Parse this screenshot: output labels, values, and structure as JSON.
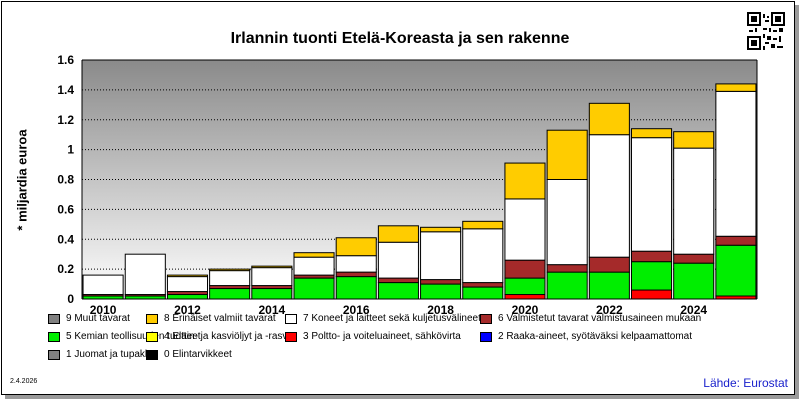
{
  "chart_data": {
    "type": "bar",
    "stacked": true,
    "title": "Irlannin tuonti Etelä-Koreasta ja sen rakenne",
    "ylabel": "* miljardia euroa",
    "xlabel": "",
    "ylim": [
      0,
      1.6
    ],
    "yticks": [
      "0",
      "0.2",
      "0.4",
      "0.6",
      "0.8",
      "1",
      "1.2",
      "1.4",
      "1.6"
    ],
    "ytick_values": [
      0,
      0.2,
      0.4,
      0.6,
      0.8,
      1.0,
      1.2,
      1.4,
      1.6
    ],
    "xtick_labels": [
      "2010",
      "2012",
      "2014",
      "2016",
      "2018",
      "2020",
      "2022",
      "2024"
    ],
    "categories": [
      "2010",
      "2011",
      "2012",
      "2013",
      "2014",
      "2015",
      "2016",
      "2017",
      "2018",
      "2019",
      "2020",
      "2021",
      "2022",
      "2023",
      "2024",
      "2025"
    ],
    "grid": true,
    "legend_position": "bottom",
    "series": [
      {
        "name": "0 Elintarvikkeet",
        "color": "#000000",
        "values": [
          0,
          0,
          0,
          0,
          0,
          0,
          0,
          0,
          0,
          0,
          0,
          0,
          0,
          0,
          0,
          0
        ]
      },
      {
        "name": "1 Juomat ja tupakka",
        "color": "#808080",
        "values": [
          0,
          0,
          0,
          0,
          0,
          0,
          0,
          0,
          0,
          0,
          0,
          0,
          0,
          0,
          0,
          0
        ]
      },
      {
        "name": "2 Raaka-aineet, syötäväksi kelpaamattomat",
        "color": "#0000ff",
        "values": [
          0,
          0,
          0,
          0,
          0,
          0,
          0,
          0,
          0,
          0,
          0,
          0,
          0,
          0,
          0,
          0
        ]
      },
      {
        "name": "3 Poltto- ja voiteluaineet, sähkövirta",
        "color": "#ff0000",
        "values": [
          0,
          0,
          0,
          0,
          0,
          0,
          0,
          0,
          0,
          0,
          0.03,
          0,
          0,
          0.06,
          0,
          0.02
        ]
      },
      {
        "name": "4 Eläin- ja kasviöljyt ja -rasvat",
        "color": "#ffff00",
        "values": [
          0,
          0,
          0,
          0,
          0,
          0,
          0,
          0,
          0,
          0,
          0,
          0,
          0,
          0,
          0,
          0
        ]
      },
      {
        "name": "5 Kemian teollisuuden tuotteet",
        "color": "#00ee00",
        "values": [
          0.02,
          0.02,
          0.03,
          0.07,
          0.07,
          0.14,
          0.15,
          0.11,
          0.1,
          0.08,
          0.11,
          0.18,
          0.18,
          0.19,
          0.24,
          0.34
        ]
      },
      {
        "name": "6 Valmistetut tavarat valmistusaineen mukaan",
        "color": "#a52a2a",
        "values": [
          0.01,
          0.01,
          0.02,
          0.02,
          0.02,
          0.02,
          0.03,
          0.03,
          0.03,
          0.03,
          0.12,
          0.05,
          0.1,
          0.07,
          0.06,
          0.06
        ]
      },
      {
        "name": "7 Koneet ja laitteet sekä kuljetusvälineet",
        "color": "#ffffff",
        "values": [
          0.13,
          0.27,
          0.1,
          0.1,
          0.12,
          0.12,
          0.11,
          0.24,
          0.32,
          0.36,
          0.41,
          0.57,
          0.82,
          0.76,
          0.71,
          0.97
        ]
      },
      {
        "name": "8 Erinäiset valmiit tavarat",
        "color": "#ffcc00",
        "values": [
          0,
          0,
          0.01,
          0.01,
          0.01,
          0.03,
          0.12,
          0.11,
          0.03,
          0.05,
          0.24,
          0.33,
          0.21,
          0.06,
          0.11,
          0.05
        ]
      },
      {
        "name": "9 Muut tavarat",
        "color": "#808080",
        "values": [
          0,
          0,
          0,
          0,
          0,
          0,
          0,
          0,
          0,
          0,
          0,
          0,
          0,
          0,
          0,
          0
        ]
      }
    ]
  },
  "legend": {
    "items": [
      {
        "label": "9 Muut tavarat",
        "color": "#808080"
      },
      {
        "label": "8 Erinäiset valmiit tavarat",
        "color": "#ffcc00"
      },
      {
        "label": "7 Koneet ja laitteet sekä kuljetusvälineet",
        "color": "#ffffff"
      },
      {
        "label": "6 Valmistetut tavarat valmistusaineen mukaan",
        "color": "#a52a2a"
      },
      {
        "label": "5 Kemian teollisuuden tuotteet",
        "color": "#00ee00"
      },
      {
        "label": "4 Eläin- ja kasviöljyt ja -rasvat",
        "color": "#ffff00"
      },
      {
        "label": "3 Poltto- ja voiteluaineet, sähkövirta",
        "color": "#ff0000"
      },
      {
        "label": "2 Raaka-aineet, syötäväksi kelpaamattomat",
        "color": "#0000ff"
      },
      {
        "label": "1 Juomat ja tupakka",
        "color": "#808080"
      },
      {
        "label": "0 Elintarvikkeet",
        "color": "#000000"
      }
    ]
  },
  "footer": {
    "date": "2.4.2026",
    "source": "Lähde: Eurostat"
  },
  "colors": {
    "plot_gradient_top": "#8a8a8a",
    "plot_gradient_bottom": "#ffffff",
    "source_text": "#1a22cc"
  },
  "qr_icon": "qr-code-icon"
}
